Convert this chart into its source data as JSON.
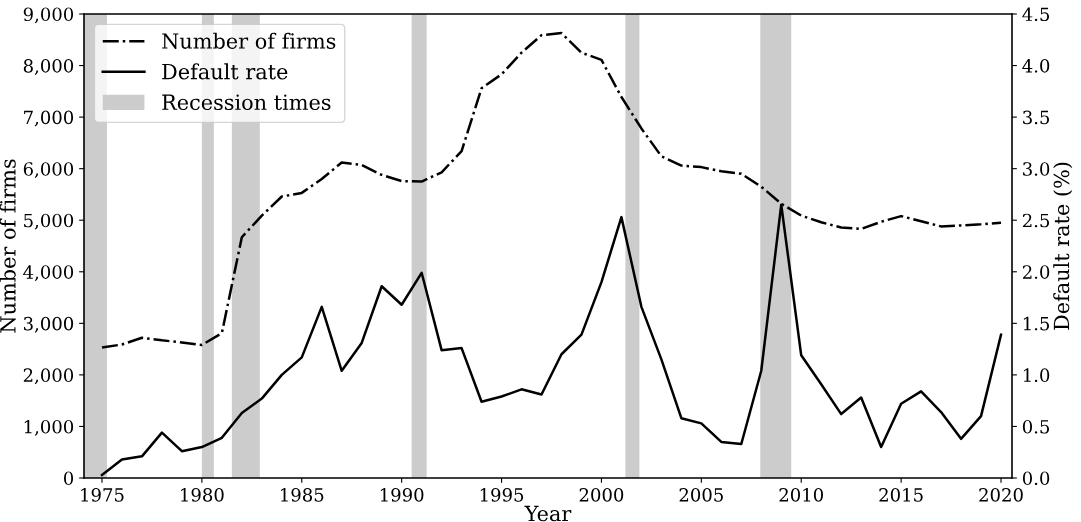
{
  "chart_data": {
    "type": "line",
    "xlabel": "Year",
    "ylabel": "Number of firms",
    "y2label": "Default rate (%)",
    "x": [
      1975,
      1976,
      1977,
      1978,
      1979,
      1980,
      1981,
      1982,
      1983,
      1984,
      1985,
      1986,
      1987,
      1988,
      1989,
      1990,
      1991,
      1992,
      1993,
      1994,
      1995,
      1996,
      1997,
      1998,
      1999,
      2000,
      2001,
      2002,
      2003,
      2004,
      2005,
      2006,
      2007,
      2008,
      2009,
      2010,
      2011,
      2012,
      2013,
      2014,
      2015,
      2016,
      2017,
      2018,
      2019,
      2020
    ],
    "series": [
      {
        "name": "Number of firms",
        "color": "#000000",
        "line_style": "dashdot",
        "values": [
          2530,
          2590,
          2720,
          2670,
          2630,
          2580,
          2810,
          4670,
          5090,
          5460,
          5530,
          5800,
          6120,
          6070,
          5880,
          5760,
          5750,
          5930,
          6340,
          7560,
          7830,
          8250,
          8590,
          8630,
          8250,
          8110,
          7390,
          6780,
          6240,
          6060,
          6030,
          5950,
          5900,
          5650,
          5320,
          5090,
          4960,
          4860,
          4830,
          4970,
          5080,
          4980,
          4880,
          4900,
          4920,
          4950
        ]
      },
      {
        "name": "Default rate",
        "color": "#000000",
        "line_style": "solid",
        "axis": "y2",
        "values": [
          0.03,
          0.18,
          0.21,
          0.44,
          0.26,
          0.3,
          0.39,
          0.63,
          0.77,
          1.0,
          1.17,
          1.66,
          1.04,
          1.31,
          1.86,
          1.68,
          1.99,
          1.24,
          1.26,
          0.74,
          0.79,
          0.86,
          0.81,
          1.2,
          1.39,
          1.9,
          2.53,
          1.66,
          1.15,
          0.58,
          0.53,
          0.35,
          0.33,
          1.04,
          2.65,
          1.19,
          0.91,
          0.62,
          0.78,
          0.3,
          0.72,
          0.84,
          0.64,
          0.38,
          0.6,
          1.39
        ]
      }
    ],
    "bands": [
      {
        "axis": "x",
        "from": 1974.1,
        "to": 1975.25,
        "label": "Recession times",
        "color": "#cccccc"
      },
      {
        "axis": "x",
        "from": 1980.0,
        "to": 1980.6,
        "color": "#cccccc"
      },
      {
        "axis": "x",
        "from": 1981.5,
        "to": 1982.9,
        "color": "#cccccc"
      },
      {
        "axis": "x",
        "from": 1990.5,
        "to": 1991.25,
        "color": "#cccccc"
      },
      {
        "axis": "x",
        "from": 2001.2,
        "to": 2001.9,
        "color": "#cccccc"
      },
      {
        "axis": "x",
        "from": 2007.95,
        "to": 2009.5,
        "color": "#cccccc"
      }
    ],
    "xlim": [
      1974.1,
      2020.55
    ],
    "xticks": [
      1975,
      1980,
      1985,
      1990,
      1995,
      2000,
      2005,
      2010,
      2015,
      2020
    ],
    "ylim": [
      0,
      9000
    ],
    "yticks": [
      {
        "value": 0,
        "label": "0"
      },
      {
        "value": 1000,
        "label": "1,000"
      },
      {
        "value": 2000,
        "label": "2,000"
      },
      {
        "value": 3000,
        "label": "3,000"
      },
      {
        "value": 4000,
        "label": "4,000"
      },
      {
        "value": 5000,
        "label": "5,000"
      },
      {
        "value": 6000,
        "label": "6,000"
      },
      {
        "value": 7000,
        "label": "7,000"
      },
      {
        "value": 8000,
        "label": "8,000"
      },
      {
        "value": 9000,
        "label": "9,000"
      }
    ],
    "y2lim": [
      0,
      4.5
    ],
    "y2ticks": [
      {
        "value": 0,
        "label": "0.0"
      },
      {
        "value": 0.5,
        "label": "0.5"
      },
      {
        "value": 1,
        "label": "1.0"
      },
      {
        "value": 1.5,
        "label": "1.5"
      },
      {
        "value": 2,
        "label": "2.0"
      },
      {
        "value": 2.5,
        "label": "2.5"
      },
      {
        "value": 3,
        "label": "3.0"
      },
      {
        "value": 3.5,
        "label": "3.5"
      },
      {
        "value": 4,
        "label": "4.0"
      },
      {
        "value": 4.5,
        "label": "4.5"
      }
    ],
    "grid": false,
    "legend": "top left"
  }
}
